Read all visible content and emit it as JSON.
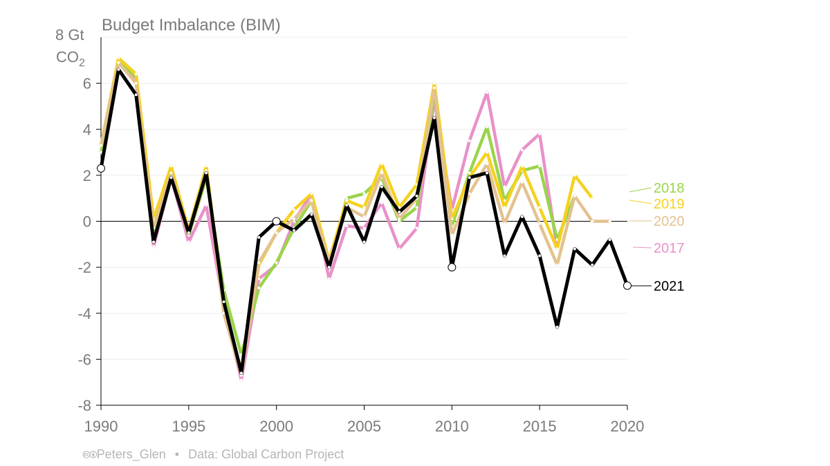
{
  "chart_data": {
    "type": "line",
    "title": "Budget Imbalance (BIM)",
    "ylabel_top": "8 Gt",
    "ylabel_unit": "CO",
    "ylabel_sub": "2",
    "xlim": [
      1990,
      2020
    ],
    "ylim": [
      -8,
      8
    ],
    "xticks": [
      1990,
      1995,
      2000,
      2005,
      2010,
      2015,
      2020
    ],
    "yticks": [
      -8,
      -6,
      -4,
      -2,
      0,
      2,
      4,
      6
    ],
    "ytick_labels": [
      "-8",
      "-6",
      "-4",
      "-2",
      "0",
      "2",
      "4",
      "6"
    ],
    "xtick_labels": [
      "1990",
      "1995",
      "2000",
      "2005",
      "2010",
      "2015",
      "2020"
    ],
    "series": [
      {
        "name": "2017",
        "color": "#e991c8",
        "start": 1990,
        "values": [
          3.3,
          6.9,
          6.2,
          -1.1,
          1.9,
          -0.9,
          0.7,
          -3.7,
          -6.9,
          -2.5,
          -1.9,
          0.0,
          1.2,
          -2.5,
          -0.2,
          -0.3,
          0.8,
          -1.2,
          -0.3,
          5.3,
          0.5,
          3.5,
          5.6,
          1.5,
          3.1,
          3.8,
          -1.2
        ]
      },
      {
        "name": "2018",
        "color": "#9ad44a",
        "start": 1990,
        "values": [
          3.0,
          6.9,
          6.3,
          -0.5,
          2.0,
          -0.6,
          1.9,
          -3.0,
          -5.8,
          -2.9,
          -1.8,
          -0.3,
          0.9,
          -2.0,
          1.0,
          1.2,
          1.9,
          0.0,
          0.6,
          5.6,
          -0.2,
          2.1,
          4.1,
          0.9,
          2.2,
          2.4,
          -0.8,
          1.1
        ]
      },
      {
        "name": "2019",
        "color": "#f5d21f",
        "start": 1990,
        "values": [
          3.3,
          7.1,
          6.4,
          0.1,
          2.4,
          -0.4,
          2.4,
          -3.8,
          -6.5,
          -1.9,
          -0.5,
          0.5,
          1.2,
          -1.7,
          0.9,
          0.6,
          2.5,
          0.6,
          1.6,
          6.0,
          0.1,
          1.9,
          3.0,
          0.6,
          2.4,
          0.6,
          -1.2,
          2.0,
          1.0
        ]
      },
      {
        "name": "2020",
        "color": "#e3c28f",
        "start": 1990,
        "values": [
          3.3,
          6.9,
          6.0,
          -0.3,
          2.1,
          -0.5,
          2.2,
          -4.0,
          -6.7,
          -1.8,
          -0.5,
          0.1,
          0.9,
          -1.8,
          0.6,
          0.2,
          2.1,
          0.1,
          1.0,
          5.8,
          -0.6,
          1.2,
          2.5,
          -0.1,
          1.7,
          -0.1,
          -1.9,
          1.1,
          0.0,
          0.0
        ]
      },
      {
        "name": "2021",
        "color": "#000000",
        "start": 1990,
        "values": [
          2.3,
          6.6,
          5.5,
          -0.9,
          1.9,
          -0.5,
          2.1,
          -3.5,
          -6.6,
          -0.7,
          0.0,
          -0.4,
          0.3,
          -2.0,
          0.7,
          -0.9,
          1.5,
          0.4,
          1.1,
          4.5,
          -2.0,
          1.9,
          2.1,
          -1.5,
          0.2,
          -1.5,
          -4.6,
          -1.2,
          -1.9,
          -0.8,
          -2.8
        ]
      }
    ],
    "legend_order": [
      "2018",
      "2019",
      "2020",
      "2017",
      "2021"
    ],
    "zero_line": true
  },
  "footer": {
    "cc_icons": "🅭🅯",
    "author": "Peters_Glen",
    "separator": "•",
    "source": "Data: Global Carbon Project"
  }
}
